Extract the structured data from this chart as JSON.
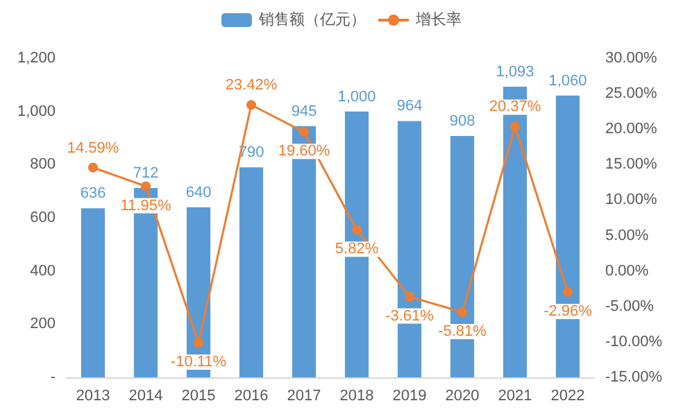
{
  "chart_data": {
    "type": "bar",
    "categories": [
      "2013",
      "2014",
      "2015",
      "2016",
      "2017",
      "2018",
      "2019",
      "2020",
      "2021",
      "2022"
    ],
    "series": [
      {
        "name": "销售额（亿元）",
        "color": "#5b9bd5",
        "values": [
          636,
          712,
          640,
          790,
          945,
          1000,
          964,
          908,
          1093,
          1060
        ],
        "value_labels": [
          "636",
          "712",
          "640",
          "790",
          "945",
          "1,000",
          "964",
          "908",
          "1,093",
          "1,060"
        ]
      },
      {
        "name": "增长率",
        "type": "line",
        "axis": "y2",
        "color": "#ed7d31",
        "marker": "circle",
        "values": [
          14.59,
          11.95,
          -10.11,
          23.42,
          19.6,
          5.82,
          -3.61,
          -5.81,
          20.37,
          -2.96
        ],
        "value_labels": [
          "14.59%",
          "11.95%",
          "-10.11%",
          "23.42%",
          "19.60%",
          "5.82%",
          "-3.61%",
          "-5.81%",
          "20.37%",
          "-2.96%"
        ]
      }
    ],
    "ylim": [
      0,
      1200
    ],
    "yticks": [
      {
        "value": 0,
        "label": "-"
      },
      200,
      400,
      600,
      800,
      {
        "value": 1000,
        "label": "1,000"
      },
      {
        "value": 1200,
        "label": "1,200"
      }
    ],
    "y2lim": [
      -15,
      30
    ],
    "y2ticks": [
      {
        "value": -15,
        "label": "-15.00%"
      },
      {
        "value": -10,
        "label": "-10.00%"
      },
      {
        "value": -5,
        "label": "-5.00%"
      },
      {
        "value": 0,
        "label": "0.00%"
      },
      {
        "value": 5,
        "label": "5.00%"
      },
      {
        "value": 10,
        "label": "10.00%"
      },
      {
        "value": 15,
        "label": "15.00%"
      },
      {
        "value": 20,
        "label": "20.00%"
      },
      {
        "value": 25,
        "label": "25.00%"
      },
      {
        "value": 30,
        "label": "30.00%"
      }
    ],
    "grid": false,
    "legend": "top"
  }
}
